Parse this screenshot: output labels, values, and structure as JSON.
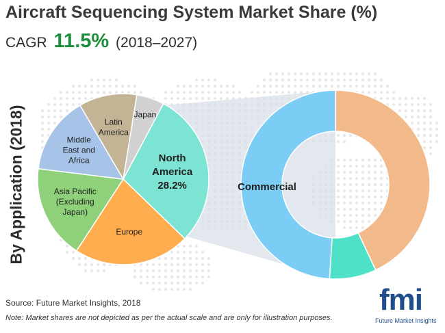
{
  "title": "Aircraft Sequencing System Market Share (%)",
  "cagr": {
    "label": "CAGR",
    "value": "11.5%",
    "period": "(2018–2027)"
  },
  "side_label": "By Application (2018)",
  "source": "Source: Future Market Insights, 2018",
  "note": "Note: Market shares are not depicted as per the actual scale and are only for illustration purposes.",
  "logo": {
    "word": "fmi",
    "tagline": "Future Market Insights",
    "color": "#1f4e8c"
  },
  "chart_data": [
    {
      "type": "pie",
      "title": "",
      "slices": [
        {
          "label": [
            "North",
            "America",
            "28.2%"
          ],
          "value": 28.2,
          "color": "#7de3d3",
          "emphasis": true
        },
        {
          "label": [
            "Europe"
          ],
          "value": 21.0,
          "color": "#ffad4f"
        },
        {
          "label": [
            "Asia Pacific",
            "(Excluding",
            "Japan)"
          ],
          "value": 17.0,
          "color": "#8fd07a"
        },
        {
          "label": [
            "Middle",
            "East and",
            "Africa"
          ],
          "value": 14.0,
          "color": "#a7c3e8"
        },
        {
          "label": [
            "Latin",
            "America"
          ],
          "value": 10.5,
          "color": "#c4b496"
        },
        {
          "label": [
            "Japan"
          ],
          "value": 5.0,
          "color": "#d1d1d1"
        }
      ]
    },
    {
      "type": "pie",
      "title": "",
      "slices": [
        {
          "label": "",
          "value": 43.0,
          "color": "#f2b98a"
        },
        {
          "label": "",
          "value": 8.0,
          "color": "#4fe0c8"
        },
        {
          "label": "Commercial",
          "value": 49.0,
          "color": "#7ccdf5"
        }
      ]
    }
  ]
}
